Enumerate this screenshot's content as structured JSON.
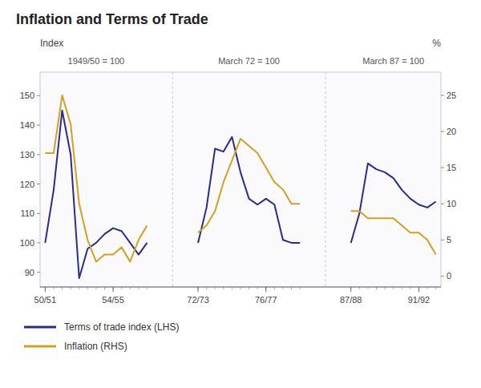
{
  "chart_data": {
    "type": "line",
    "title": "Inflation and Terms of Trade",
    "ylabel": "Index",
    "y2label": "%",
    "annotations": [
      {
        "text": "1949/50 = 100",
        "x": 3
      },
      {
        "text": "March 72 = 100",
        "x": 12
      },
      {
        "text": "March 87 = 100",
        "x": 20.5
      }
    ],
    "x": [
      0,
      0.5,
      1,
      1.5,
      2,
      2.5,
      3,
      3.5,
      4,
      4.5,
      5,
      5.5,
      6,
      7.5,
      9,
      9.5,
      10,
      10.5,
      11,
      11.5,
      12,
      12.5,
      13,
      13.5,
      14,
      14.5,
      15,
      16.5,
      18,
      18.5,
      19,
      19.5,
      20,
      20.5,
      21,
      21.5,
      22,
      22.5,
      23
    ],
    "series": [
      {
        "name": "Terms of trade index (LHS)",
        "color": "#2b2b8f",
        "values": [
          100,
          118,
          145,
          130,
          88,
          98,
          100,
          103,
          105,
          104,
          100,
          96,
          100,
          null,
          100,
          112,
          132,
          131,
          136,
          124,
          115,
          113,
          115,
          113,
          101,
          100,
          100,
          null,
          100,
          110,
          127,
          125,
          124,
          122,
          118,
          115,
          113,
          112,
          114
        ]
      },
      {
        "name": "Inflation (RHS)",
        "color": "#d4a020",
        "axis": "y2",
        "values": [
          17,
          17,
          25,
          21,
          10,
          5,
          2,
          3,
          3,
          4,
          2,
          5,
          7,
          null,
          6,
          7,
          9,
          13,
          16,
          19,
          18,
          17,
          15,
          13,
          12,
          10,
          10,
          null,
          9,
          9,
          8,
          8,
          8,
          8,
          7,
          6,
          6,
          5,
          3
        ]
      }
    ],
    "xlim": [
      -0.3,
      23.3
    ],
    "xticks": [
      {
        "value": 0,
        "label": "50/51"
      },
      {
        "value": 4,
        "label": "54/55"
      },
      {
        "value": 9,
        "label": "72/73"
      },
      {
        "value": 13,
        "label": "76/77"
      },
      {
        "value": 18,
        "label": "87/88"
      },
      {
        "value": 22,
        "label": "91/92"
      }
    ],
    "ylim": [
      85,
      158
    ],
    "yticks": [
      90,
      100,
      110,
      120,
      130,
      140,
      150
    ],
    "y2lim": [
      -1.5,
      28.2
    ],
    "y2ticks": [
      0,
      5,
      10,
      15,
      20,
      25
    ],
    "grid": false,
    "legend": "bottom"
  }
}
